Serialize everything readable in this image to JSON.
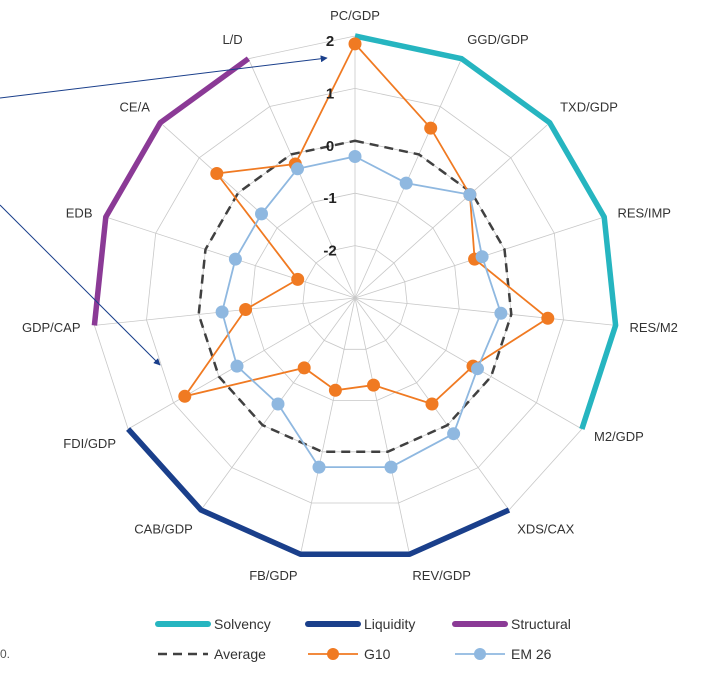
{
  "chart_data": {
    "type": "radar",
    "axes": [
      "PC/GDP",
      "GGD/GDP",
      "TXD/GDP",
      "RES/IMP",
      "RES/M2",
      "M2/GDP",
      "XDS/CAX",
      "REV/GDP",
      "FB/GDP",
      "CAB/GDP",
      "FDI/GDP",
      "GDP/CAP",
      "EDB",
      "CE/A",
      "L/D"
    ],
    "rlim": [
      -3,
      2
    ],
    "ticks": [
      {
        "value": 2,
        "label": "2"
      },
      {
        "value": 1,
        "label": "1"
      },
      {
        "value": 0,
        "label": "0"
      },
      {
        "value": -1,
        "label": "-1"
      },
      {
        "value": -2,
        "label": "-2"
      }
    ],
    "grid": true,
    "series": [
      {
        "name": "Average",
        "style": "dashed",
        "color": "#404040",
        "values": [
          0,
          0,
          0,
          0,
          0,
          0,
          0,
          0,
          0,
          0,
          0,
          0,
          0,
          0,
          0
        ]
      },
      {
        "name": "G10",
        "style": "line-marker",
        "color": "#f07a22",
        "values": [
          1.85,
          0.55,
          -0.05,
          -0.6,
          0.7,
          -0.4,
          -0.5,
          -1.3,
          -1.2,
          -1.35,
          0.75,
          -0.9,
          -1.85,
          0.55,
          -0.2
        ]
      },
      {
        "name": "EM 26",
        "style": "line-marker",
        "color": "#8fb8e0",
        "values": [
          -0.3,
          -0.6,
          -0.05,
          -0.45,
          -0.2,
          -0.3,
          0.2,
          0.3,
          0.3,
          -0.5,
          -0.4,
          -0.45,
          -0.6,
          -0.6,
          -0.3
        ]
      }
    ],
    "groups": [
      {
        "name": "Solvency",
        "color": "#26b5c0",
        "from": 0,
        "to": 5
      },
      {
        "name": "Liquidity",
        "color": "#1a3f8b",
        "from": 6,
        "to": 10
      },
      {
        "name": "Structural",
        "color": "#8b3a96",
        "from": 11,
        "to": 14
      }
    ],
    "legend": [
      {
        "label": "Solvency",
        "kind": "thick",
        "color": "#26b5c0"
      },
      {
        "label": "Liquidity",
        "kind": "thick",
        "color": "#1a3f8b"
      },
      {
        "label": "Structural",
        "kind": "thick",
        "color": "#8b3a96"
      },
      {
        "label": "Average",
        "kind": "dashed",
        "color": "#404040"
      },
      {
        "label": "G10",
        "kind": "marker",
        "color": "#f07a22"
      },
      {
        "label": "EM 26",
        "kind": "marker",
        "color": "#8fb8e0"
      }
    ],
    "legend_position": "bottom-right",
    "annotations": {
      "arrow_color": "#1a3f8b",
      "cut_text": "0."
    }
  }
}
